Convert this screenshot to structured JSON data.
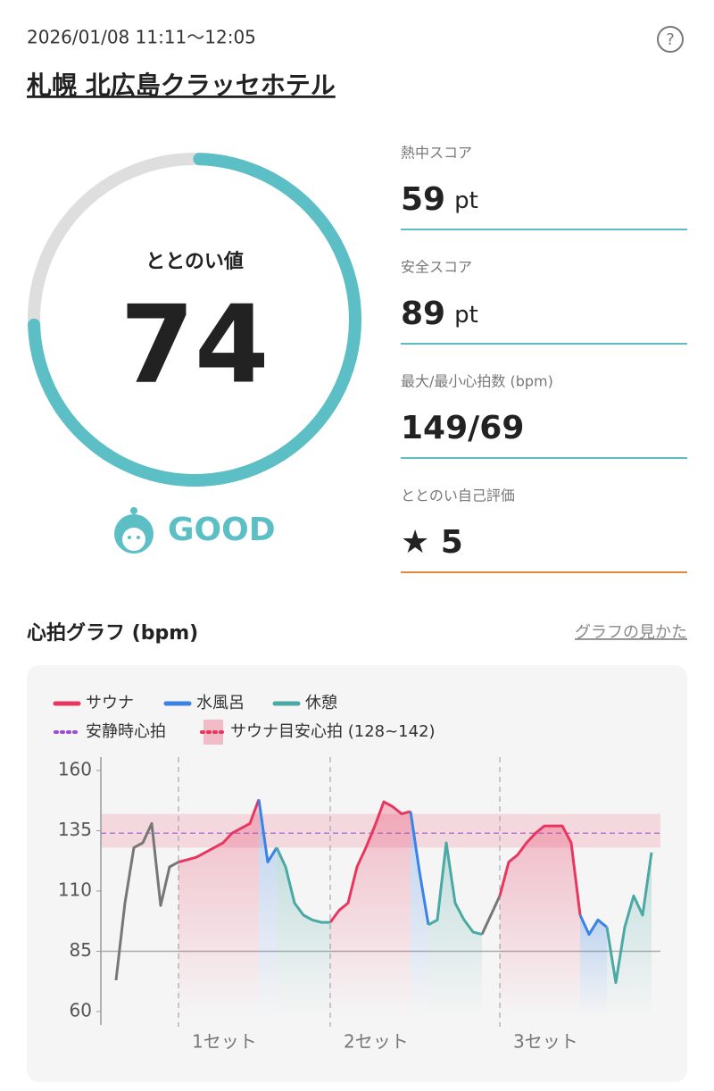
{
  "header": {
    "datetime": "2026/01/08 11:11〜12:05",
    "place": "札幌 北広島クラッセホテル"
  },
  "score": {
    "label": "ととのい値",
    "value": 74,
    "range": [
      0,
      100
    ],
    "status": "GOOD"
  },
  "stats": [
    {
      "label": "熱中スコア",
      "value": "59",
      "unit": "pt"
    },
    {
      "label": "安全スコア",
      "value": "89",
      "unit": "pt"
    },
    {
      "label": "最大/最小心拍数 (bpm)",
      "value": "149/69"
    },
    {
      "label": "ととのい自己評価",
      "value": "★ 5"
    }
  ],
  "graph_title": "心拍グラフ (bpm)",
  "graph_help": "グラフの見かた",
  "chart_data": {
    "type": "line",
    "ylim": [
      60,
      160
    ],
    "yticks": [
      60,
      85,
      110,
      135,
      160
    ],
    "hline": 85,
    "resting_hr": {
      "name": "安静時心拍",
      "value": 134,
      "color": "#9b4fd0"
    },
    "target_band": {
      "name": "サウナ目安心拍 (128~142)",
      "range": [
        128,
        142
      ],
      "color": "#e8365f"
    },
    "sets": [
      {
        "label": "1セット",
        "start": 7
      },
      {
        "label": "2セット",
        "start": 24
      },
      {
        "label": "3セット",
        "start": 43
      }
    ],
    "series": [
      {
        "color": "#777777",
        "values": [
          73,
          105,
          128,
          130,
          138,
          104,
          120,
          122,
          null,
          null,
          null,
          null,
          null,
          null,
          null,
          null,
          null,
          null,
          null,
          null,
          null,
          null,
          null,
          null,
          null,
          null,
          null,
          null,
          null,
          null,
          null,
          null,
          null,
          null,
          null,
          null,
          null,
          null,
          null,
          null,
          null,
          92,
          100,
          108,
          null,
          null,
          null,
          null,
          null,
          null,
          null,
          null,
          null,
          null,
          null,
          null,
          null,
          null,
          null,
          null,
          null
        ]
      },
      {
        "name": "サウナ",
        "color": "#e8365f",
        "values": [
          null,
          null,
          null,
          null,
          null,
          null,
          null,
          122,
          123,
          124,
          126,
          128,
          130,
          134,
          136,
          138,
          148,
          null,
          null,
          null,
          null,
          null,
          null,
          null,
          97,
          102,
          105,
          120,
          128,
          137,
          147,
          145,
          142,
          143,
          null,
          null,
          null,
          null,
          null,
          null,
          null,
          null,
          null,
          108,
          122,
          125,
          130,
          134,
          137,
          137,
          137,
          130,
          100,
          null,
          null,
          null,
          null,
          null,
          null,
          null,
          null
        ]
      },
      {
        "name": "水風呂",
        "color": "#3b82e6",
        "values": [
          null,
          null,
          null,
          null,
          null,
          null,
          null,
          null,
          null,
          null,
          null,
          null,
          null,
          null,
          null,
          null,
          148,
          122,
          128,
          null,
          null,
          null,
          null,
          null,
          null,
          null,
          null,
          null,
          null,
          null,
          null,
          null,
          null,
          143,
          118,
          96,
          null,
          null,
          null,
          null,
          null,
          null,
          null,
          null,
          null,
          null,
          null,
          null,
          null,
          null,
          null,
          null,
          100,
          92,
          98,
          95,
          null,
          null,
          null,
          null,
          null
        ]
      },
      {
        "name": "休憩",
        "color": "#4aa9a4",
        "values": [
          null,
          null,
          null,
          null,
          null,
          null,
          null,
          null,
          null,
          null,
          null,
          null,
          null,
          null,
          null,
          null,
          null,
          null,
          128,
          120,
          105,
          100,
          98,
          97,
          97,
          null,
          null,
          null,
          null,
          null,
          null,
          null,
          null,
          null,
          null,
          96,
          98,
          130,
          105,
          98,
          93,
          92,
          null,
          null,
          null,
          null,
          null,
          null,
          null,
          null,
          null,
          null,
          null,
          null,
          null,
          95,
          72,
          95,
          108,
          100,
          126
        ]
      }
    ]
  }
}
